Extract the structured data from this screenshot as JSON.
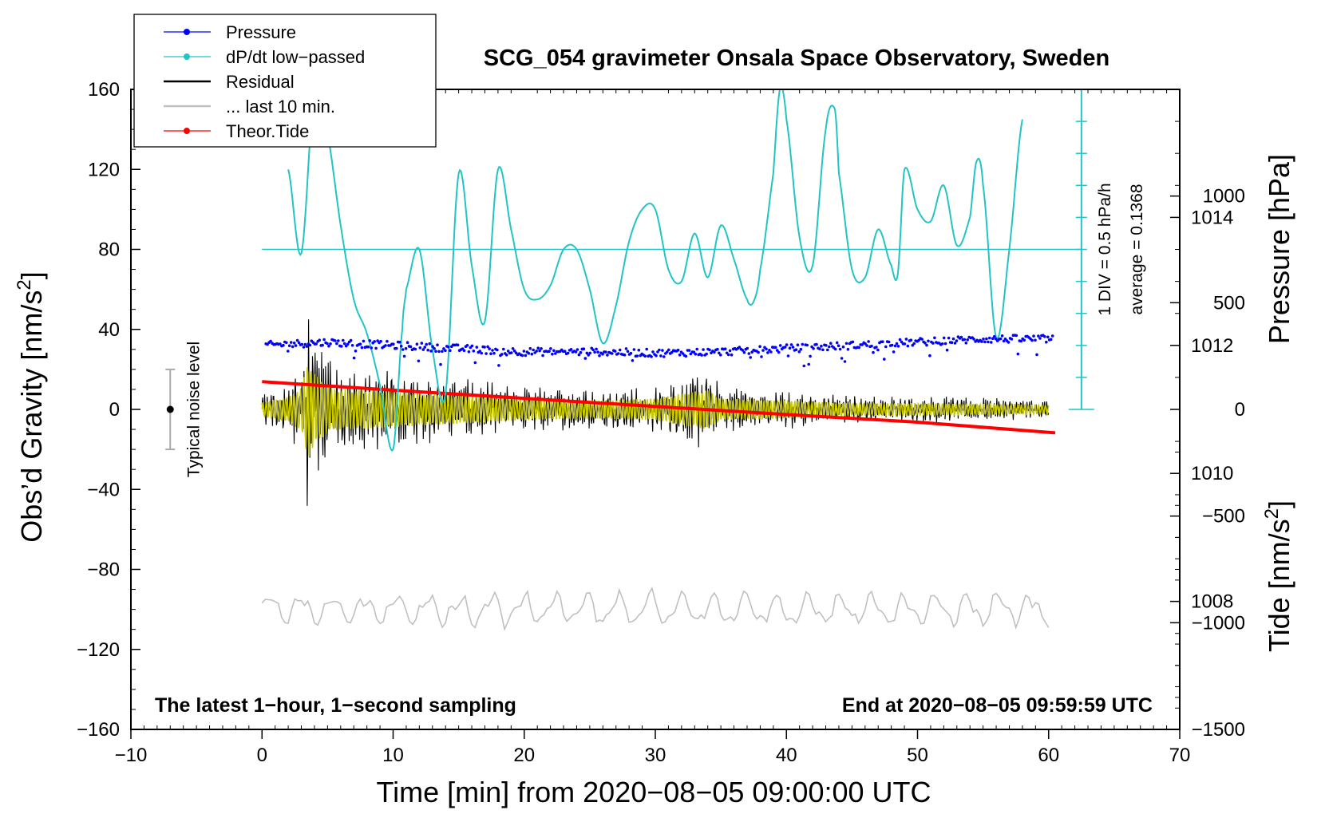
{
  "chart_data": {
    "type": "line",
    "title": "SCG_054 gravimeter Onsala Space Observatory, Sweden",
    "xlabel": "Time [min] from 2020−08−05 09:00:00 UTC",
    "ylabel": "Obs’d Gravity [nm/s²]",
    "ylabel_main": "Obs’d Gravity [nm/s",
    "ylabel_sup": "2",
    "ylabel_tail": "]",
    "y2label_pressure": "Pressure [hPa]",
    "y2label_tide": "Tide [nm/s²]",
    "y2label_tide_main": "Tide [nm/s",
    "y2label_tide_sup": "2",
    "y2label_tide_tail": "]",
    "xlim": [
      -10,
      70
    ],
    "ylim": [
      -160,
      160
    ],
    "x_ticks": [
      -10,
      0,
      10,
      20,
      30,
      40,
      50,
      60,
      70
    ],
    "x_tick_labels": [
      "−10",
      "0",
      "10",
      "20",
      "30",
      "40",
      "50",
      "60",
      "70"
    ],
    "y_ticks": [
      -160,
      -120,
      -80,
      -40,
      0,
      40,
      80,
      120,
      160
    ],
    "y_tick_labels": [
      "−160",
      "−120",
      "−80",
      "−40",
      "0",
      "40",
      "80",
      "120",
      "160"
    ],
    "pressure_axis": {
      "range_hpa": [
        1006,
        1016
      ],
      "ticks": [
        1008,
        1010,
        1012,
        1014
      ],
      "tick_labels": [
        "1008",
        "1010",
        "1012",
        "1014"
      ]
    },
    "tide_axis": {
      "range": [
        -1500,
        1500
      ],
      "ticks": [
        1000,
        500,
        0,
        -500,
        -1000,
        -1500
      ],
      "tick_labels": [
        "1000",
        "500",
        "0",
        "−500",
        "−1000",
        "−1500"
      ]
    },
    "legend": {
      "position": "top-left",
      "entries": [
        {
          "label": "Pressure",
          "color": "#0000ff",
          "marker": true
        },
        {
          "label": "dP/dt low−passed",
          "color": "#22c4c4",
          "marker": true
        },
        {
          "label": "Residual",
          "color": "#000000",
          "marker": false
        },
        {
          "label": "... last 10 min.",
          "color": "#c0c0c0",
          "marker": false
        },
        {
          "label": "Theor.Tide",
          "color": "#ff0000",
          "marker": true
        }
      ]
    },
    "series": [
      {
        "name": "Pressure",
        "units": "hPa",
        "color": "#0000ff",
        "x": [
          0,
          5,
          10,
          15,
          20,
          25,
          30,
          35,
          40,
          45,
          50,
          55,
          60
        ],
        "values": [
          1012.0,
          1012.05,
          1012.0,
          1011.95,
          1011.9,
          1011.9,
          1011.88,
          1011.9,
          1011.95,
          1012.0,
          1012.05,
          1012.1,
          1012.1
        ]
      },
      {
        "name": "dP/dt low-passed",
        "units": "gravity-axis units (1 DIV = 0.5 hPa/h)",
        "color": "#22c4c4",
        "x": [
          2,
          3,
          4,
          5,
          6,
          7,
          8,
          9,
          10,
          10.7,
          11,
          12,
          13,
          14,
          15,
          16,
          17,
          18,
          19,
          20,
          21,
          22,
          23,
          24,
          25,
          26,
          27,
          28,
          29,
          30,
          31,
          32,
          33,
          34,
          35,
          36,
          37,
          37.5,
          38,
          39,
          39.5,
          40,
          41,
          42,
          43,
          43.7,
          44,
          45,
          46,
          47,
          48,
          48.5,
          49,
          50,
          51,
          52,
          53,
          54,
          54.5,
          55,
          56,
          57,
          58
        ],
        "values": [
          120,
          78,
          160,
          138,
          92,
          55,
          38,
          12,
          -20,
          40,
          60,
          80,
          30,
          8,
          118,
          72,
          44,
          120,
          90,
          60,
          55,
          62,
          80,
          80,
          60,
          33,
          52,
          84,
          100,
          100,
          70,
          64,
          88,
          66,
          92,
          75,
          55,
          54,
          70,
          118,
          160,
          145,
          86,
          72,
          140,
          150,
          118,
          70,
          66,
          90,
          72,
          68,
          120,
          100,
          94,
          112,
          82,
          96,
          124,
          112,
          36,
          80,
          145
        ]
      },
      {
        "name": "Residual",
        "units": "nm/s²",
        "color": "#000000",
        "x": [
          0,
          2,
          3,
          3.5,
          4,
          5,
          6,
          8,
          10,
          12,
          15,
          20,
          25,
          30,
          32,
          34,
          35,
          40,
          45,
          50,
          55,
          60
        ],
        "amplitude": [
          8,
          14,
          24,
          55,
          40,
          26,
          22,
          22,
          20,
          18,
          16,
          12,
          10,
          12,
          18,
          22,
          12,
          10,
          7,
          7,
          6,
          5
        ]
      },
      {
        "name": "... last 10 min.",
        "units": "offset residual trace",
        "color": "#c0c0c0",
        "x": [
          0,
          60
        ],
        "values": [
          -100,
          -100
        ]
      },
      {
        "name": "Theor.Tide",
        "units": "nm/s² (tide axis)",
        "color": "#ff0000",
        "x": [
          0,
          10,
          20,
          30,
          40,
          50,
          60.5
        ],
        "values": [
          130,
          90,
          52,
          14,
          -24,
          -60,
          -110
        ]
      }
    ],
    "noise_indicator": {
      "label": "Typical noise level",
      "x": -7,
      "center": 0,
      "range": [
        -20,
        20
      ]
    },
    "pressure_scale": {
      "div_label": "1 DIV = 0.5 hPa/h",
      "average_label": "average = 0.1368",
      "x": 62.5,
      "baseline_gravity": 80,
      "range_gravity": [
        0,
        160
      ]
    },
    "corner_left": "The latest 1−hour, 1−second sampling",
    "corner_right": "End at 2020−08−05 09:59:59 UTC"
  }
}
